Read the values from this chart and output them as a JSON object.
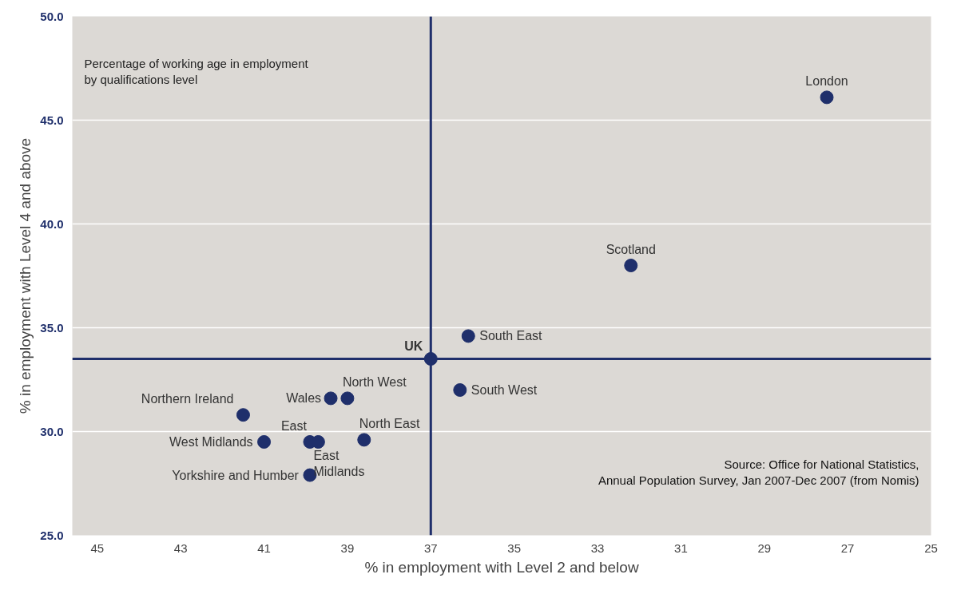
{
  "chart_data": {
    "type": "scatter",
    "title": "Percentage of working age in employment by qualifications level",
    "xlabel": "% in employment with Level 2 and below",
    "ylabel": "% in employment with Level 4 and above",
    "xlim": [
      45.6,
      25
    ],
    "ylim": [
      25,
      50
    ],
    "xticks": [
      45,
      43,
      41,
      39,
      37,
      35,
      33,
      31,
      29,
      27,
      25
    ],
    "yticks": [
      {
        "value": 25,
        "label": "25.0"
      },
      {
        "value": 30,
        "label": "30.0"
      },
      {
        "value": 35,
        "label": "35.0"
      },
      {
        "value": 40,
        "label": "40.0"
      },
      {
        "value": 45,
        "label": "45.0"
      },
      {
        "value": 50,
        "label": "50.0"
      }
    ],
    "grid": "y",
    "marker": "circle",
    "series": [
      {
        "name": "London",
        "color": "#1f2f6b",
        "x": [
          27.5
        ],
        "values": [
          46.1
        ]
      },
      {
        "name": "Scotland",
        "color": "#1f2f6b",
        "x": [
          32.2
        ],
        "values": [
          38.0
        ]
      },
      {
        "name": "South East",
        "color": "#1f2f6b",
        "x": [
          36.1
        ],
        "values": [
          34.6
        ]
      },
      {
        "name": "UK",
        "color": "#1f2f6b",
        "x": [
          37.0
        ],
        "values": [
          33.5
        ]
      },
      {
        "name": "South West",
        "color": "#1f2f6b",
        "x": [
          36.3
        ],
        "values": [
          32.0
        ]
      },
      {
        "name": "North West",
        "color": "#1f2f6b",
        "x": [
          39.0
        ],
        "values": [
          31.6
        ]
      },
      {
        "name": "Wales",
        "color": "#1f2f6b",
        "x": [
          39.4
        ],
        "values": [
          31.6
        ]
      },
      {
        "name": "Northern Ireland",
        "color": "#1f2f6b",
        "x": [
          41.5
        ],
        "values": [
          30.8
        ]
      },
      {
        "name": "North East",
        "color": "#1f2f6b",
        "x": [
          38.6
        ],
        "values": [
          29.6
        ]
      },
      {
        "name": "East",
        "color": "#1f2f6b",
        "x": [
          39.9
        ],
        "values": [
          29.5
        ]
      },
      {
        "name": "East Midlands",
        "color": "#1f2f6b",
        "x": [
          39.7
        ],
        "values": [
          29.5
        ]
      },
      {
        "name": "West Midlands",
        "color": "#1f2f6b",
        "x": [
          41.0
        ],
        "values": [
          29.5
        ]
      },
      {
        "name": "Yorkshire and Humber",
        "color": "#1f2f6b",
        "x": [
          39.9
        ],
        "values": [
          27.9
        ]
      }
    ],
    "ref_lines": [
      {
        "axis": "x",
        "value": 37,
        "color": "#1f2f6b"
      },
      {
        "axis": "y",
        "value": 33.5,
        "color": "#1f2f6b"
      }
    ],
    "annotations": [
      "Source: Office for National Statistics, Annual Population Survey, Jan 2007-Dec 2007 (from Nomis)"
    ]
  }
}
